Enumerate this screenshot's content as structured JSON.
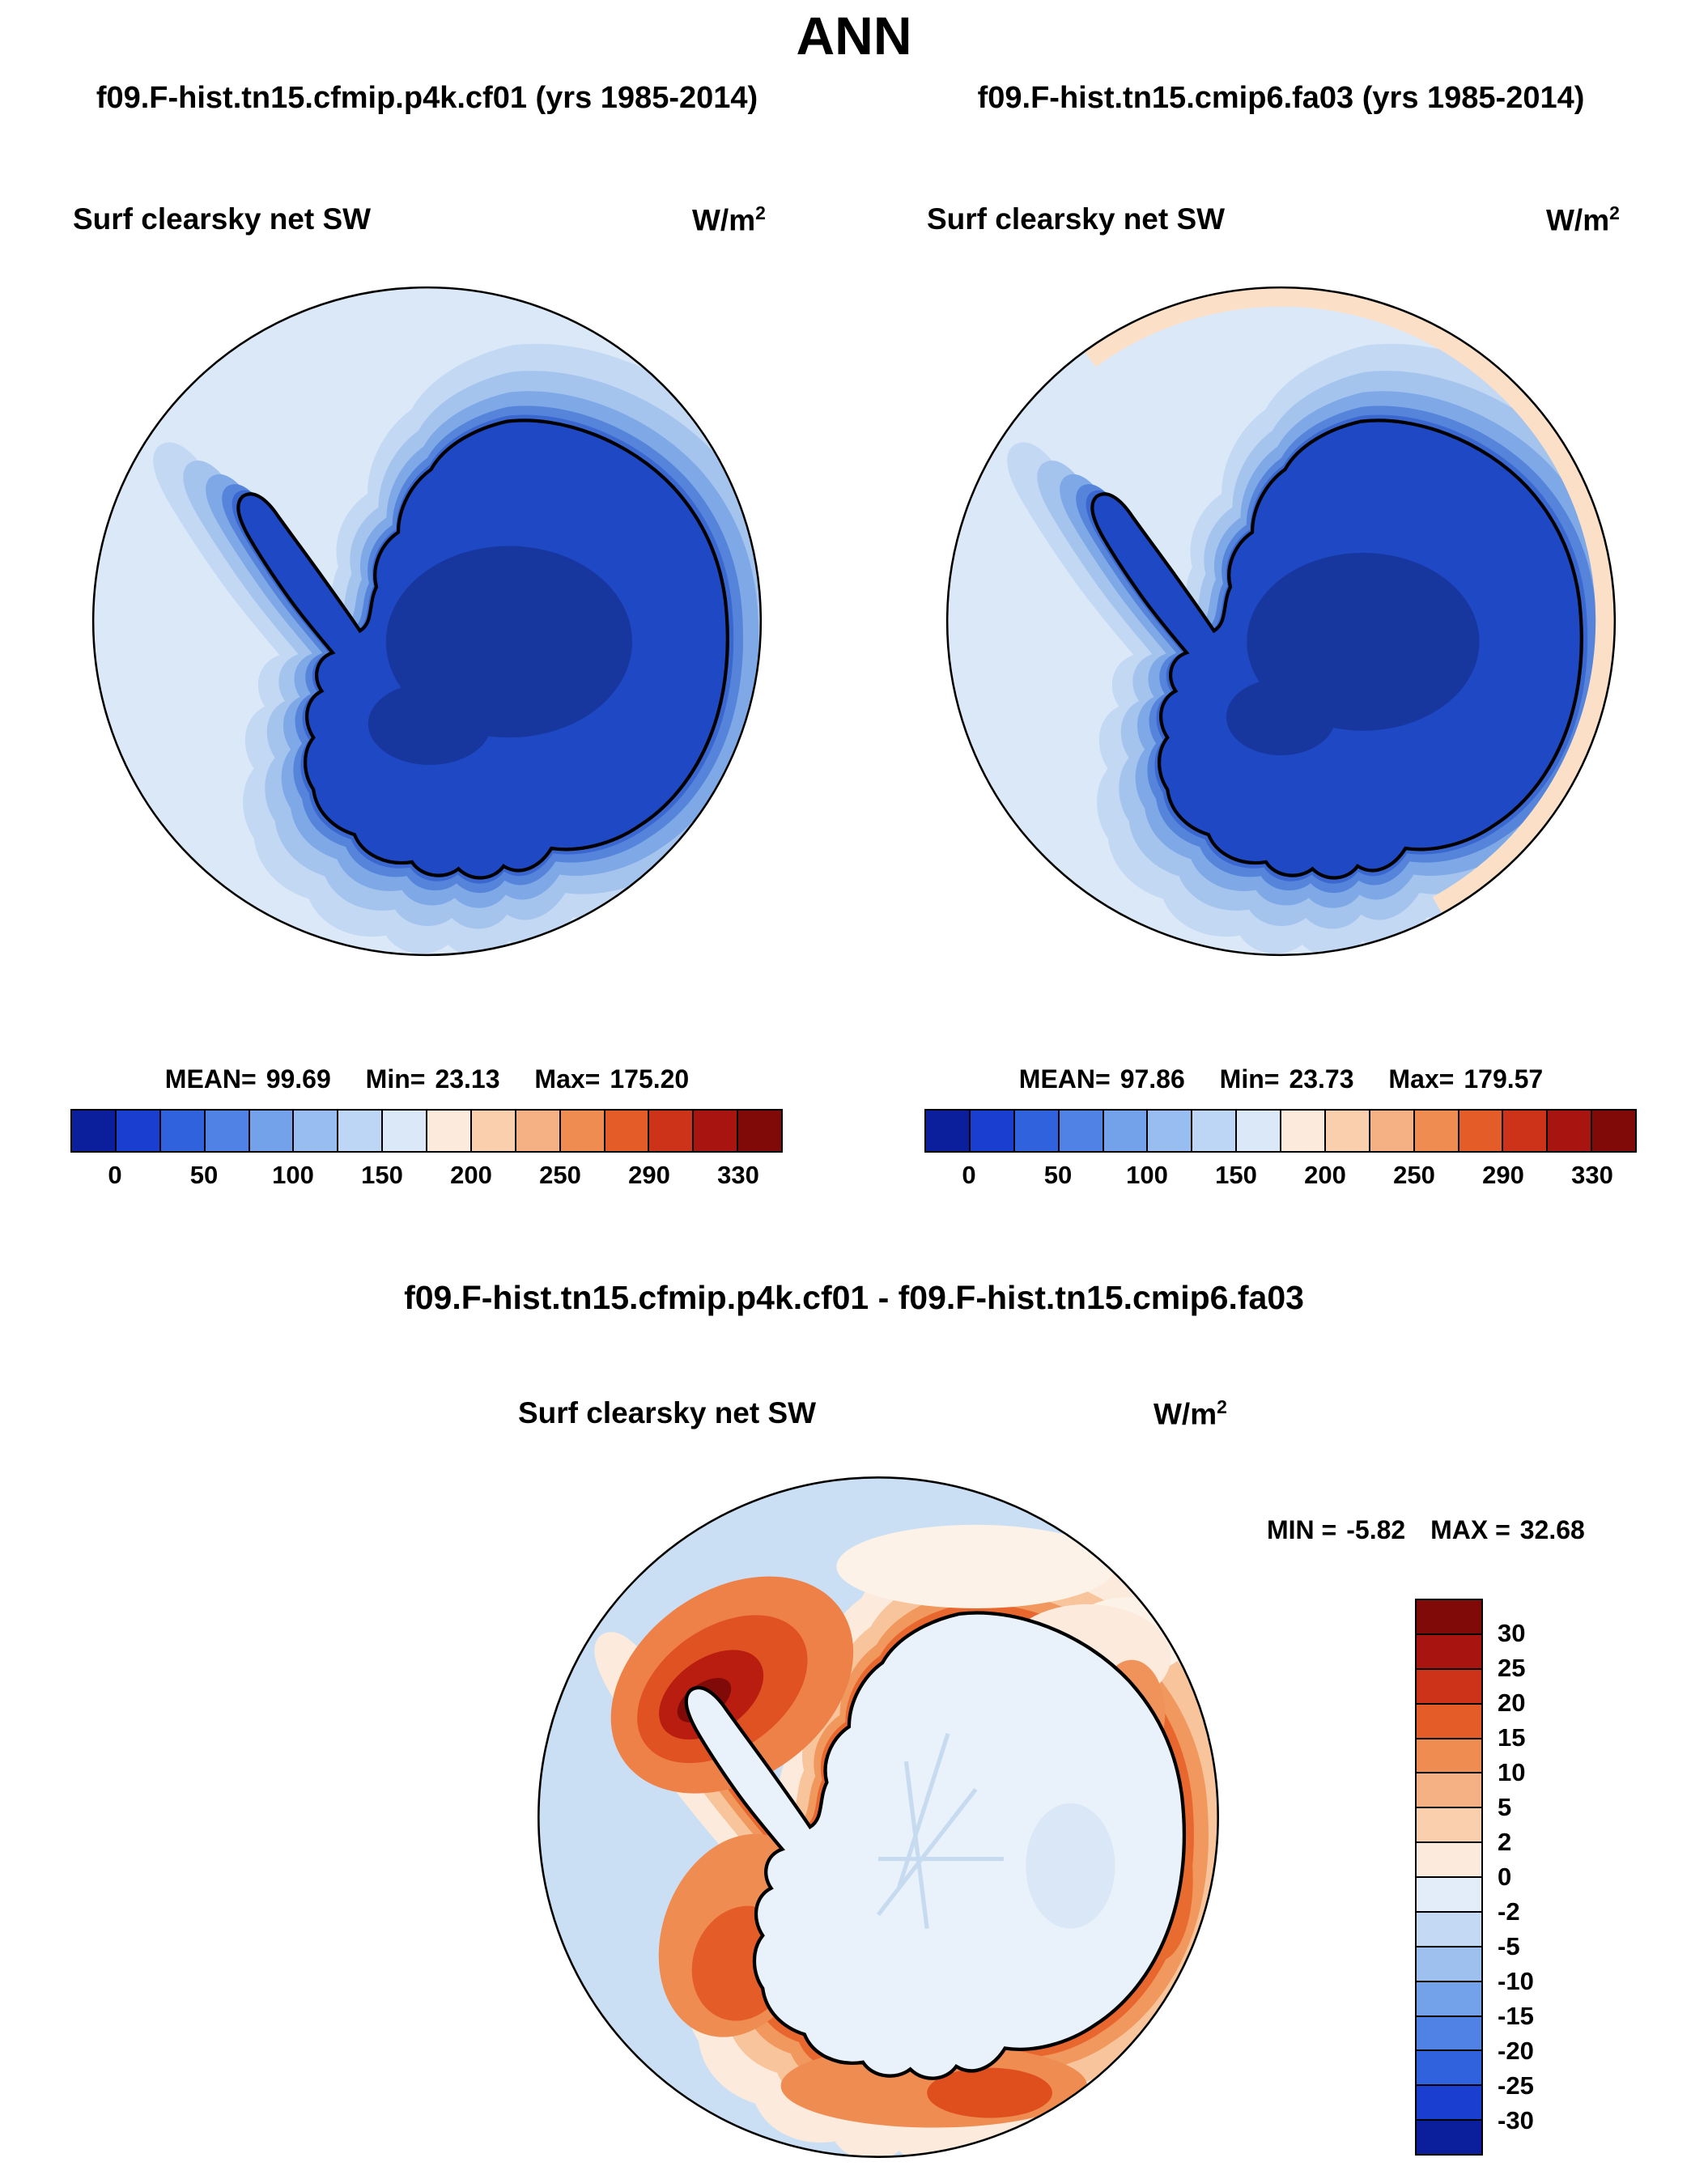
{
  "title": "ANN",
  "field_label": "Surf clearsky net SW",
  "units": {
    "base": "W/m",
    "exp": "2"
  },
  "panels": {
    "left": {
      "run_title": "f09.F-hist.tn15.cfmip.p4k.cf01 (yrs 1985-2014)",
      "stats": {
        "mean_label": "MEAN=",
        "mean": "99.69",
        "min_label": "Min=",
        "min": "23.13",
        "max_label": "Max=",
        "max": "175.20"
      }
    },
    "right": {
      "run_title": "f09.F-hist.tn15.cmip6.fa03 (yrs 1985-2014)",
      "stats": {
        "mean_label": "MEAN=",
        "mean": "97.86",
        "min_label": "Min=",
        "min": "23.73",
        "max_label": "Max=",
        "max": "179.57"
      }
    }
  },
  "diff": {
    "title": "f09.F-hist.tn15.cfmip.p4k.cf01 - f09.F-hist.tn15.cmip6.fa03",
    "stats": {
      "min_label": "MIN =",
      "min": "-5.82",
      "max_label": "MAX =",
      "max": "32.68"
    }
  },
  "colorbar_abs": {
    "ticks": [
      "0",
      "50",
      "100",
      "150",
      "200",
      "250",
      "290",
      "330"
    ],
    "colors": [
      "#0b1f9c",
      "#1a3fd0",
      "#2f62dc",
      "#4f82e4",
      "#74a2ea",
      "#98bdf0",
      "#bdd6f5",
      "#dbe8f7",
      "#fcebdc",
      "#f9cfae",
      "#f5b183",
      "#ef8c51",
      "#e45c28",
      "#cc3318",
      "#a81410",
      "#7f0a08"
    ]
  },
  "colorbar_diff": {
    "ticks": [
      "30",
      "25",
      "20",
      "15",
      "10",
      "5",
      "2",
      "0",
      "-2",
      "-5",
      "-10",
      "-15",
      "-20",
      "-25",
      "-30"
    ],
    "colors": [
      "#7f0a08",
      "#a81410",
      "#cc3318",
      "#e45c28",
      "#ef8c51",
      "#f5b183",
      "#f9cfae",
      "#fcebdc",
      "#e2edf9",
      "#c4d9f3",
      "#9dc0ee",
      "#74a2ea",
      "#4f82e4",
      "#2f62dc",
      "#1a3fd0",
      "#0b1f9c"
    ]
  },
  "chart_data": [
    {
      "type": "heatmap",
      "subtype": "filled-contour-map",
      "projection": "south polar stereographic (Antarctica)",
      "title": "f09.F-hist.tn15.cfmip.p4k.cf01 (yrs 1985-2014)",
      "field": "Surf clearsky net SW",
      "units": "W/m^2",
      "season": "ANN",
      "stats": {
        "mean": 99.69,
        "min": 23.13,
        "max": 175.2
      },
      "colorbar_orientation": "horizontal",
      "colorbar_ticks": [
        0,
        50,
        100,
        150,
        200,
        250,
        290,
        330
      ],
      "value_pattern": "lowest values (dark blue, ~25-50 W/m^2) over the Antarctic continent, increasing outward to ~150 W/m^2 (pale blue) at the map edge"
    },
    {
      "type": "heatmap",
      "subtype": "filled-contour-map",
      "projection": "south polar stereographic (Antarctica)",
      "title": "f09.F-hist.tn15.cmip6.fa03 (yrs 1985-2014)",
      "field": "Surf clearsky net SW",
      "units": "W/m^2",
      "season": "ANN",
      "stats": {
        "mean": 97.86,
        "min": 23.73,
        "max": 179.57
      },
      "colorbar_orientation": "horizontal",
      "colorbar_ticks": [
        0,
        50,
        100,
        150,
        200,
        250,
        290,
        330
      ],
      "value_pattern": "same pattern as left panel with a thin >150 W/m^2 (pale orange) crescent along the northern/right map edge"
    },
    {
      "type": "heatmap",
      "subtype": "filled-contour-difference-map",
      "projection": "south polar stereographic (Antarctica)",
      "title": "f09.F-hist.tn15.cfmip.p4k.cf01 - f09.F-hist.tn15.cmip6.fa03",
      "field": "Surf clearsky net SW",
      "units": "W/m^2",
      "season": "ANN",
      "stats": {
        "min": -5.82,
        "max": 32.68
      },
      "colorbar_orientation": "vertical",
      "colorbar_ticks": [
        30,
        25,
        20,
        15,
        10,
        5,
        2,
        0,
        -2,
        -5,
        -10,
        -15,
        -20,
        -25,
        -30
      ],
      "value_pattern": "positive differences (orange/red ring, +5 to +30 W/m^2) over the Southern Ocean ring around the coast, strongest (dark red, >30) near the Antarctic Peninsula at upper left; near-zero to slightly negative (pale blue, 0 to -2) over the continental interior and outer edge"
    }
  ]
}
